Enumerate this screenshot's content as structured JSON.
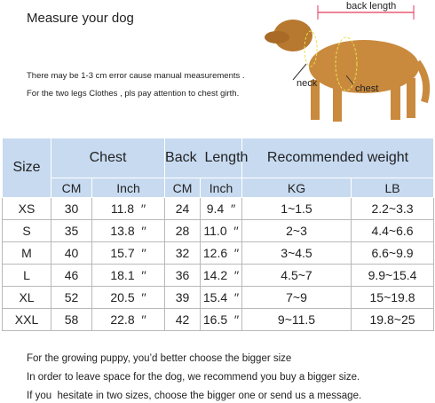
{
  "header": {
    "title": "Measure your dog",
    "notes": [
      "There may be 1-3 cm error cause manual measurements .",
      "For the two legs Clothes , pls pay attention to chest girth."
    ]
  },
  "diagram": {
    "back_length": "back length",
    "neck": "neck",
    "chest": "chest"
  },
  "table": {
    "group_headers": [
      "Size",
      "Chest",
      "Back  Length",
      "Recommended weight"
    ],
    "sub_headers": [
      "CM",
      "Inch",
      "CM",
      "Inch",
      "KG",
      "LB"
    ],
    "rows": [
      [
        "XS",
        "30",
        "11.8  ′′",
        "24",
        "9.4  ′′",
        "1~1.5",
        "2.2~3.3"
      ],
      [
        "S",
        "35",
        "13.8  ′′",
        "28",
        "11.0  ′′",
        "2~3",
        "4.4~6.6"
      ],
      [
        "M",
        "40",
        "15.7  ′′",
        "32",
        "12.6  ′′",
        "3~4.5",
        "6.6~9.9"
      ],
      [
        "L",
        "46",
        "18.1  ′′",
        "36",
        "14.2  ′′",
        "4.5~7",
        "9.9~15.4"
      ],
      [
        "XL",
        "52",
        "20.5  ′′",
        "39",
        "15.4  ′′",
        "7~9",
        "15~19.8"
      ],
      [
        "XXL",
        "58",
        "22.8  ′′",
        "42",
        "16.5  ′′",
        "9~11.5",
        "19.8~25"
      ]
    ]
  },
  "footer": {
    "notes": [
      "For the growing puppy, you’d better choose the bigger size",
      "In order to leave space for the dog, we recommend you buy a bigger size.",
      "If you  hesitate in two sizes, choose the bigger one or send us a message."
    ]
  }
}
